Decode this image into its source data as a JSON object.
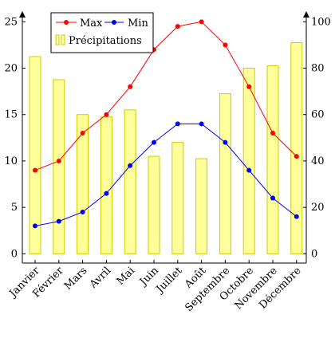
{
  "chart_data": {
    "type": "bar-line",
    "categories": [
      "Janvier",
      "Février",
      "Mars",
      "Avril",
      "Mai",
      "Juin",
      "Juillet",
      "Août",
      "Septembre",
      "Octobre",
      "Novembre",
      "Décembre"
    ],
    "series": [
      {
        "name": "Max",
        "type": "line",
        "axis": "left",
        "color": "#ff0000",
        "values": [
          9,
          10,
          13,
          15,
          18,
          22,
          24.5,
          25,
          22.5,
          18,
          13,
          10.5
        ]
      },
      {
        "name": "Min",
        "type": "line",
        "axis": "left",
        "color": "#0000ff",
        "values": [
          3,
          3.5,
          4.5,
          6.5,
          9.5,
          12,
          14,
          14,
          12,
          9,
          6,
          4
        ]
      },
      {
        "name": "Précipitations",
        "type": "bar",
        "axis": "right",
        "fill": "#ffff99",
        "stroke": "#cccc00",
        "values": [
          85,
          75,
          60,
          59,
          62,
          42,
          48,
          41,
          69,
          80,
          81,
          91
        ]
      }
    ],
    "y_left": {
      "ylim": [
        -1,
        25.8
      ],
      "ticks": [
        0,
        5,
        10,
        15,
        20,
        25
      ]
    },
    "y_right": {
      "ylim": [
        -4,
        103.2
      ],
      "ticks": [
        0,
        20,
        40,
        60,
        80,
        100
      ]
    },
    "grid": false,
    "legend_placement": "top-left",
    "xtick_rotation": "45"
  }
}
